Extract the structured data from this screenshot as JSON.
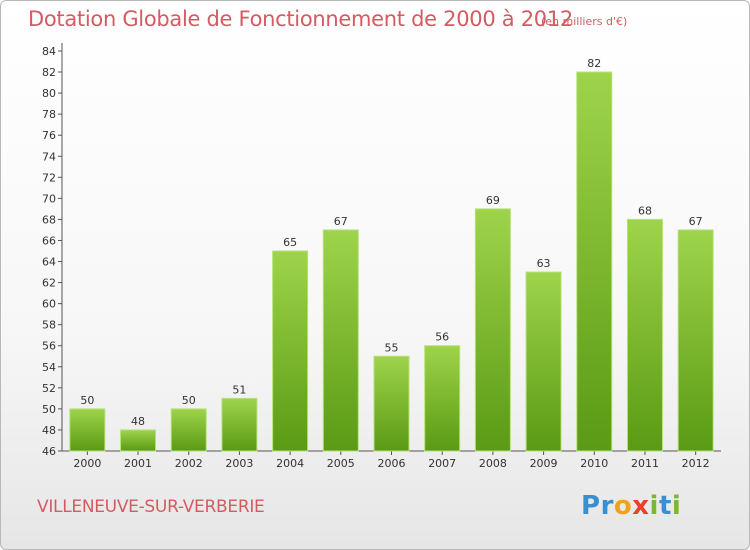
{
  "chart_data": {
    "type": "bar",
    "title": "Dotation Globale de Fonctionnement de 2000 à 2012",
    "subtitle": "(en milliers d'€)",
    "categories": [
      "2000",
      "2001",
      "2002",
      "2003",
      "2004",
      "2005",
      "2006",
      "2007",
      "2008",
      "2009",
      "2010",
      "2011",
      "2012"
    ],
    "values": [
      50,
      48,
      50,
      51,
      65,
      67,
      55,
      56,
      69,
      63,
      82,
      68,
      67
    ],
    "xlabel": "",
    "ylabel": "",
    "ylim": [
      46,
      84
    ],
    "yticks": [
      46,
      48,
      50,
      52,
      54,
      56,
      58,
      60,
      62,
      64,
      66,
      68,
      70,
      72,
      74,
      76,
      78,
      80,
      82,
      84
    ],
    "grid": false,
    "bar_color": "#7fbe2b",
    "data_labels": true
  },
  "footer": {
    "commune": "VILLENEUVE-SUR-VERBERIE",
    "logo_letters": [
      {
        "ch": "P",
        "color": "#3a8fd1"
      },
      {
        "ch": "r",
        "color": "#3a8fd1"
      },
      {
        "ch": "o",
        "color": "#f0a21a"
      },
      {
        "ch": "x",
        "color": "#e8402a"
      },
      {
        "ch": "i",
        "color": "#7cb82f"
      },
      {
        "ch": "t",
        "color": "#3a8fd1"
      },
      {
        "ch": "i",
        "color": "#7cb82f"
      }
    ]
  },
  "colors": {
    "title": "#d65a62",
    "axis": "#555555",
    "bar_top": "#9ed44a",
    "bar_bottom": "#5a9a14"
  }
}
